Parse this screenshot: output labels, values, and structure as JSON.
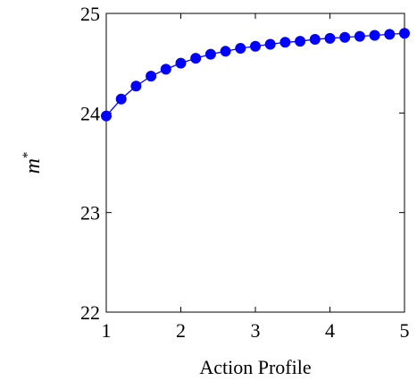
{
  "chart_data": {
    "type": "line",
    "title": "",
    "xlabel": "Action Profile",
    "ylabel": "m",
    "ylabel_superscript": "*",
    "xlim": [
      1,
      5
    ],
    "ylim": [
      22,
      25
    ],
    "xticks": [
      "1",
      "2",
      "3",
      "4",
      "5"
    ],
    "yticks": [
      "22",
      "23",
      "24",
      "25"
    ],
    "grid": false,
    "marker": "circle",
    "color": "#0000ff",
    "series": [
      {
        "x": [
          1.0,
          1.2,
          1.4,
          1.6,
          1.8,
          2.0,
          2.2,
          2.4,
          2.6,
          2.8,
          3.0,
          3.2,
          3.4,
          3.6,
          3.8,
          4.0,
          4.2,
          4.4,
          4.6,
          4.8,
          5.0
        ],
        "values": [
          23.97,
          24.14,
          24.27,
          24.37,
          24.44,
          24.5,
          24.55,
          24.59,
          24.62,
          24.65,
          24.67,
          24.69,
          24.71,
          24.72,
          24.74,
          24.75,
          24.76,
          24.77,
          24.78,
          24.79,
          24.8
        ]
      }
    ]
  }
}
